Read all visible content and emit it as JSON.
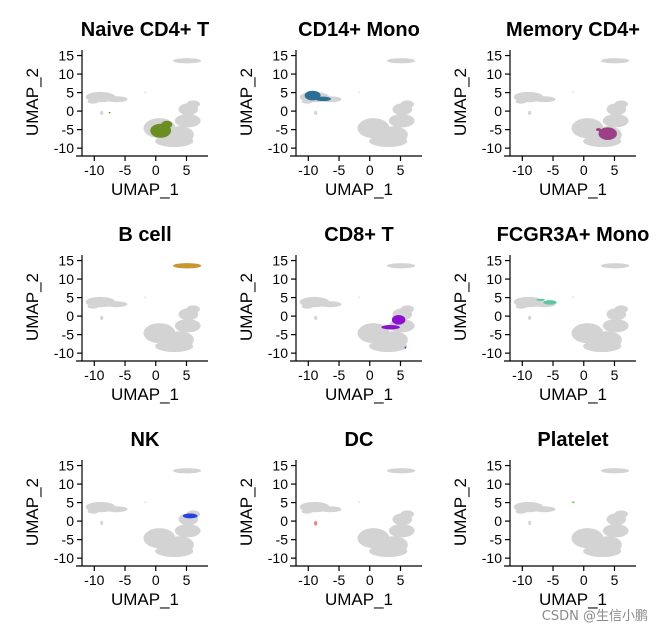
{
  "figure": {
    "watermark": "CSDN @生信小鹏",
    "background_cell_color": "#D3D3D3"
  },
  "chart_data": [
    {
      "type": "scatter",
      "title": "Naive CD4+ T",
      "xlabel": "UMAP_1",
      "ylabel": "UMAP_2",
      "xlim": [
        -12,
        8.5
      ],
      "ylim": [
        -10.5,
        16.5
      ],
      "xticks": [
        -10,
        -5,
        0,
        5
      ],
      "yticks": [
        -10,
        -5,
        0,
        5,
        10,
        15
      ],
      "grid": false,
      "highlight_color": "#6B8E23",
      "highlight_cluster": "Naive CD4+ T"
    },
    {
      "type": "scatter",
      "title": "CD14+ Mono",
      "xlabel": "UMAP_1",
      "ylabel": "UMAP_2",
      "xlim": [
        -12,
        8.5
      ],
      "ylim": [
        -10.5,
        16.5
      ],
      "xticks": [
        -10,
        -5,
        0,
        5
      ],
      "yticks": [
        -10,
        -5,
        0,
        5,
        10,
        15
      ],
      "grid": false,
      "highlight_color": "#2B6E96",
      "highlight_cluster": "CD14+ Mono"
    },
    {
      "type": "scatter",
      "title": "Memory CD4+",
      "xlabel": "UMAP_1",
      "ylabel": "UMAP_2",
      "xlim": [
        -12,
        8.5
      ],
      "ylim": [
        -10.5,
        16.5
      ],
      "xticks": [
        -10,
        -5,
        0,
        5
      ],
      "yticks": [
        -10,
        -5,
        0,
        5,
        10,
        15
      ],
      "grid": false,
      "highlight_color": "#9B3F86",
      "highlight_cluster": "Memory CD4+"
    },
    {
      "type": "scatter",
      "title": "B cell",
      "xlabel": "UMAP_1",
      "ylabel": "UMAP_2",
      "xlim": [
        -12,
        8.5
      ],
      "ylim": [
        -10.5,
        16.5
      ],
      "xticks": [
        -10,
        -5,
        0,
        5
      ],
      "yticks": [
        -10,
        -5,
        0,
        5,
        10,
        15
      ],
      "grid": false,
      "highlight_color": "#C9962F",
      "highlight_cluster": "B cell"
    },
    {
      "type": "scatter",
      "title": "CD8+ T",
      "xlabel": "UMAP_1",
      "ylabel": "UMAP_2",
      "xlim": [
        -12,
        8.5
      ],
      "ylim": [
        -10.5,
        16.5
      ],
      "xticks": [
        -10,
        -5,
        0,
        5
      ],
      "yticks": [
        -10,
        -5,
        0,
        5,
        10,
        15
      ],
      "grid": false,
      "highlight_color": "#8B10D0",
      "highlight_cluster": "CD8+ T"
    },
    {
      "type": "scatter",
      "title": "FCGR3A+ Mono",
      "xlabel": "UMAP_1",
      "ylabel": "UMAP_2",
      "xlim": [
        -12,
        8.5
      ],
      "ylim": [
        -10.5,
        16.5
      ],
      "xticks": [
        -10,
        -5,
        0,
        5
      ],
      "yticks": [
        -10,
        -5,
        0,
        5,
        10,
        15
      ],
      "grid": false,
      "highlight_color": "#5FC6A4",
      "highlight_cluster": "FCGR3A+ Mono"
    },
    {
      "type": "scatter",
      "title": "NK",
      "xlabel": "UMAP_1",
      "ylabel": "UMAP_2",
      "xlim": [
        -12,
        8.5
      ],
      "ylim": [
        -10.5,
        16.5
      ],
      "xticks": [
        -10,
        -5,
        0,
        5
      ],
      "yticks": [
        -10,
        -5,
        0,
        5,
        10,
        15
      ],
      "grid": false,
      "highlight_color": "#2342E0",
      "highlight_cluster": "NK"
    },
    {
      "type": "scatter",
      "title": "DC",
      "xlabel": "UMAP_1",
      "ylabel": "UMAP_2",
      "xlim": [
        -12,
        8.5
      ],
      "ylim": [
        -10.5,
        16.5
      ],
      "xticks": [
        -10,
        -5,
        0,
        5
      ],
      "yticks": [
        -10,
        -5,
        0,
        5,
        10,
        15
      ],
      "grid": false,
      "highlight_color": "#F08080",
      "highlight_cluster": "DC"
    },
    {
      "type": "scatter",
      "title": "Platelet",
      "xlabel": "UMAP_1",
      "ylabel": "UMAP_2",
      "xlim": [
        -12,
        8.5
      ],
      "ylim": [
        -10.5,
        16.5
      ],
      "xticks": [
        -10,
        -5,
        0,
        5
      ],
      "yticks": [
        -10,
        -5,
        0,
        5,
        10,
        15
      ],
      "grid": false,
      "highlight_color": "#32CD32",
      "highlight_cluster": "Platelet"
    }
  ],
  "clusters": [
    {
      "name": "Naive CD4+ T",
      "shapes": [
        {
          "cx": 0.8,
          "cy": -5.3,
          "rx": 1.7,
          "ry": 1.9
        },
        {
          "cx": 1.8,
          "cy": -3.6,
          "rx": 0.9,
          "ry": 1.0
        },
        {
          "cx": -7.5,
          "cy": -0.4,
          "rx": 0.15,
          "ry": 0.2
        }
      ]
    },
    {
      "name": "CD14+ Mono",
      "shapes": [
        {
          "cx": -9.3,
          "cy": 4.2,
          "rx": 1.3,
          "ry": 1.3
        },
        {
          "cx": -7.6,
          "cy": 3.3,
          "rx": 1.3,
          "ry": 0.6
        }
      ]
    },
    {
      "name": "Memory CD4+",
      "shapes": [
        {
          "cx": 3.9,
          "cy": -6.1,
          "rx": 1.5,
          "ry": 1.7
        },
        {
          "cx": 2.4,
          "cy": -5.0,
          "rx": 0.4,
          "ry": 0.4
        }
      ]
    },
    {
      "name": "B cell",
      "shapes": [
        {
          "cx": 5.1,
          "cy": 13.6,
          "rx": 2.3,
          "ry": 0.7
        }
      ]
    },
    {
      "name": "CD8+ T",
      "shapes": [
        {
          "cx": 4.7,
          "cy": -1.0,
          "rx": 1.1,
          "ry": 1.3
        },
        {
          "cx": 3.4,
          "cy": -3.0,
          "rx": 1.5,
          "ry": 0.6
        },
        {
          "cx": 5.8,
          "cy": -8.5,
          "rx": 0.12,
          "ry": 0.3
        }
      ]
    },
    {
      "name": "FCGR3A+ Mono",
      "shapes": [
        {
          "cx": -5.5,
          "cy": 3.7,
          "rx": 1.1,
          "ry": 0.6
        },
        {
          "cx": -7.0,
          "cy": 4.4,
          "rx": 0.7,
          "ry": 0.3
        }
      ]
    },
    {
      "name": "NK",
      "shapes": [
        {
          "cx": 5.6,
          "cy": 1.4,
          "rx": 1.2,
          "ry": 0.65
        }
      ]
    },
    {
      "name": "DC",
      "shapes": [
        {
          "cx": -8.8,
          "cy": -0.6,
          "rx": 0.25,
          "ry": 0.6
        }
      ]
    },
    {
      "name": "Platelet",
      "shapes": [
        {
          "cx": -1.7,
          "cy": 5.1,
          "rx": 0.22,
          "ry": 0.18
        }
      ]
    }
  ],
  "background_shapes": [
    {
      "cx": 0.6,
      "cy": -4.6,
      "rx": 2.6,
      "ry": 2.7
    },
    {
      "cx": 3.9,
      "cy": -6.4,
      "rx": 2.3,
      "ry": 2.3
    },
    {
      "cx": 3.0,
      "cy": -8.1,
      "rx": 3.1,
      "ry": 1.6
    },
    {
      "cx": 5.2,
      "cy": -2.6,
      "rx": 2.1,
      "ry": 1.8
    },
    {
      "cx": 5.3,
      "cy": 0.5,
      "rx": 1.6,
      "ry": 1.6
    },
    {
      "cx": 6.1,
      "cy": 1.9,
      "rx": 1.1,
      "ry": 1.0
    },
    {
      "cx": -9.0,
      "cy": 3.8,
      "rx": 2.4,
      "ry": 1.4
    },
    {
      "cx": -6.4,
      "cy": 3.2,
      "rx": 1.8,
      "ry": 0.8
    },
    {
      "cx": -10.2,
      "cy": 2.6,
      "rx": 0.9,
      "ry": 0.6
    },
    {
      "cx": 5.1,
      "cy": 13.6,
      "rx": 2.3,
      "ry": 0.7
    },
    {
      "cx": -8.8,
      "cy": -0.5,
      "rx": 0.25,
      "ry": 0.55
    },
    {
      "cx": -1.7,
      "cy": 5.1,
      "rx": 0.18,
      "ry": 0.15
    }
  ]
}
